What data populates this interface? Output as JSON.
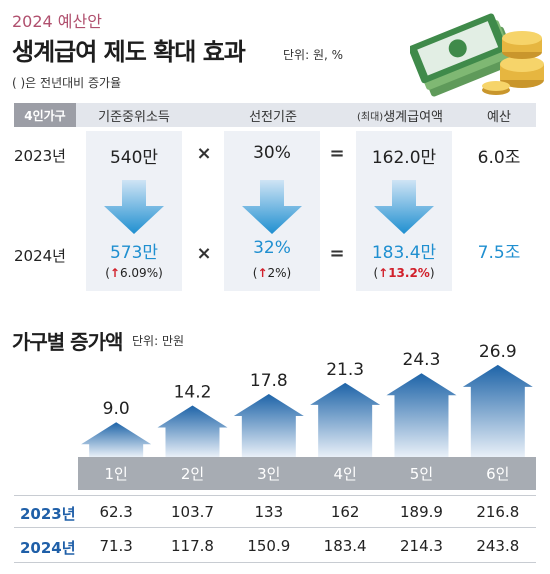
{
  "header": {
    "tag": "2024 예산안",
    "title": "생계급여 제도 확대 효과",
    "unit": "단위: 원, %",
    "note": "( )은 전년대비 증가율"
  },
  "table": {
    "col_family": "4인가구",
    "col_median": "기준중위소득",
    "col_criteria": "선전기준",
    "col_benefit_prefix": "(최대)",
    "col_benefit": "생계급여액",
    "col_budget": "예산",
    "rows": [
      {
        "year": "2023년",
        "median": "540만",
        "criteria": "30%",
        "benefit": "162.0만",
        "budget": "6.0조"
      },
      {
        "year": "2024년",
        "median": "573만",
        "criteria": "32%",
        "benefit": "183.4만",
        "budget": "7.5조"
      }
    ],
    "changes": {
      "median": "6.09%",
      "criteria": "2%",
      "benefit": "13.2%"
    },
    "op_mult": "×",
    "op_eq": "="
  },
  "chart_data": {
    "type": "bar",
    "title": "가구별 증가액",
    "unit": "단위: 만원",
    "categories": [
      "1인",
      "2인",
      "3인",
      "4인",
      "5인",
      "6인"
    ],
    "values": [
      9.0,
      14.2,
      17.8,
      21.3,
      24.3,
      26.9
    ],
    "value_labels": [
      "9.0",
      "14.2",
      "17.8",
      "21.3",
      "24.3",
      "26.9"
    ],
    "ylim": [
      0,
      30
    ],
    "colors": {
      "arrow_top": "#1e64a8",
      "arrow_bottom": "#e9f0f8",
      "band": "#a7acb3"
    }
  },
  "table2": {
    "rows": [
      {
        "year": "2023년",
        "values": [
          "62.3",
          "103.7",
          "133",
          "162",
          "189.9",
          "216.8"
        ]
      },
      {
        "year": "2024년",
        "values": [
          "71.3",
          "117.8",
          "150.9",
          "183.4",
          "214.3",
          "243.8"
        ]
      }
    ]
  },
  "colors": {
    "accent_blue": "#1f8fd0",
    "up_red": "#d1202b",
    "year_blue": "#1f5fa8"
  }
}
